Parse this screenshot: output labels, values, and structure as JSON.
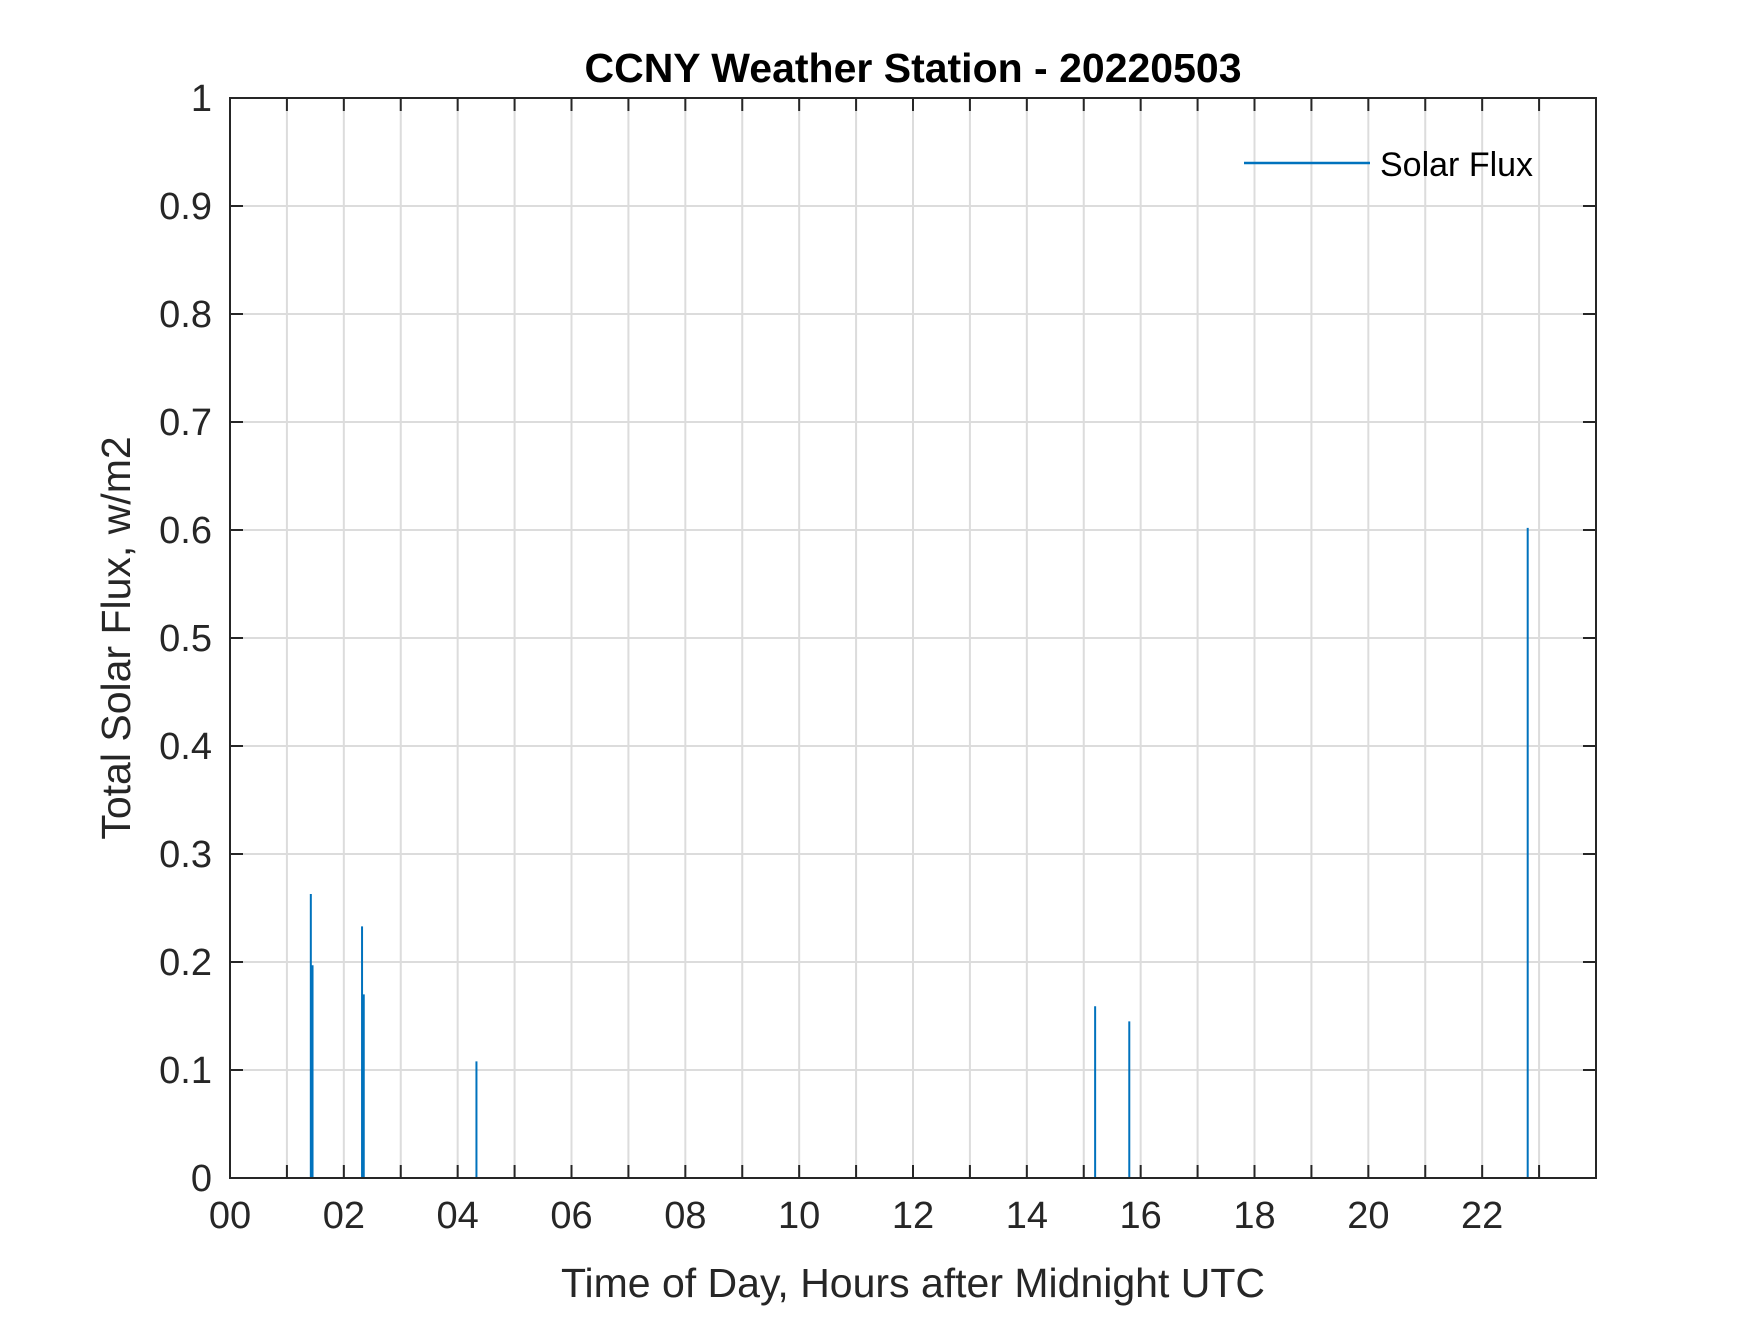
{
  "chart_data": {
    "type": "line",
    "title": "CCNY Weather Station - 20220503",
    "xlabel": "Time of Day, Hours after Midnight UTC",
    "ylabel": "Total Solar Flux, w/m2",
    "xlim": [
      0,
      24
    ],
    "ylim": [
      0,
      1
    ],
    "x_tick_values": [
      0,
      2,
      4,
      6,
      8,
      10,
      12,
      14,
      16,
      18,
      20,
      22
    ],
    "x_tick_labels": [
      "00",
      "02",
      "04",
      "06",
      "08",
      "10",
      "12",
      "14",
      "16",
      "18",
      "20",
      "22"
    ],
    "x_grid_step": 1,
    "y_tick_values": [
      0,
      0.1,
      0.2,
      0.3,
      0.4,
      0.5,
      0.6,
      0.7,
      0.8,
      0.9,
      1
    ],
    "y_tick_labels": [
      "0",
      "0.1",
      "0.2",
      "0.3",
      "0.4",
      "0.5",
      "0.6",
      "0.7",
      "0.8",
      "0.9",
      "1"
    ],
    "grid": true,
    "legend_position": "top-right",
    "series": [
      {
        "name": "Solar Flux",
        "color": "#0072bd",
        "spikes": [
          {
            "x": 1.42,
            "y": 0.263
          },
          {
            "x": 1.45,
            "y": 0.197
          },
          {
            "x": 2.32,
            "y": 0.233
          },
          {
            "x": 2.35,
            "y": 0.17
          },
          {
            "x": 4.33,
            "y": 0.108
          },
          {
            "x": 15.2,
            "y": 0.159
          },
          {
            "x": 15.8,
            "y": 0.145
          },
          {
            "x": 22.8,
            "y": 0.602
          }
        ]
      }
    ]
  }
}
